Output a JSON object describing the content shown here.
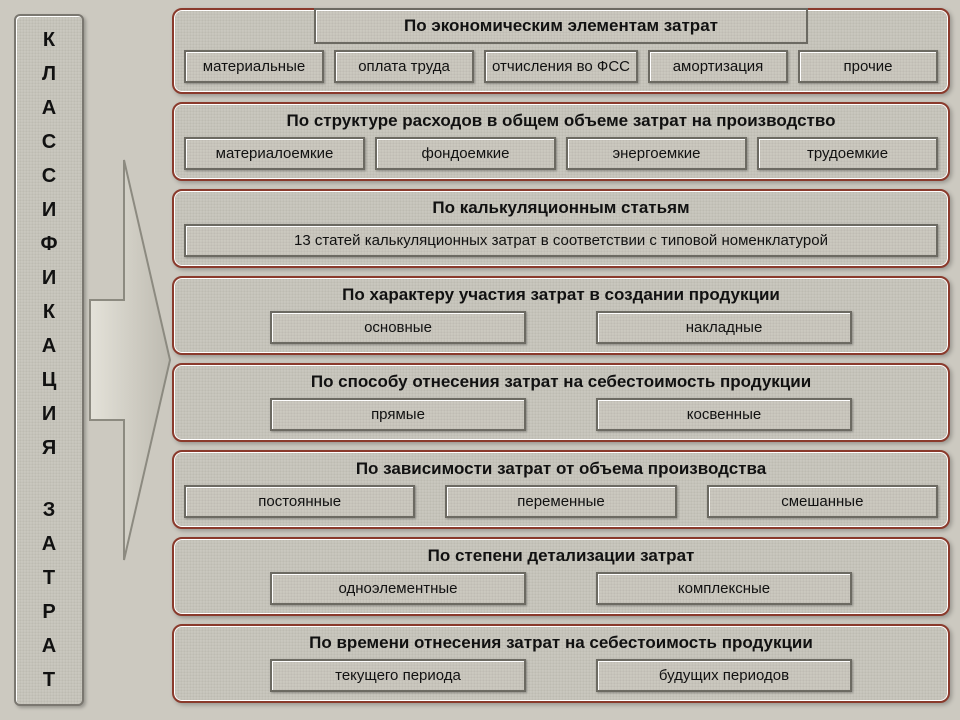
{
  "colors": {
    "panel_border": "#8a3a2c",
    "chip_border": "#6c6a62",
    "chip_bg": "#c9c6bd",
    "page_bg": "#ccc9c0",
    "arrow_fill": "#d5d3ca",
    "arrow_stroke": "#8c8a80"
  },
  "left_title": "КЛАССИФИКАЦИЯ ЗАТРАТ",
  "panels": [
    {
      "title": "По экономическим элементам затрат",
      "layout": "banner5",
      "items": [
        "материальные",
        "оплата труда",
        "отчисления во ФСС",
        "амортизация",
        "прочие"
      ]
    },
    {
      "title": "По структуре расходов в общем объеме затрат на производство",
      "layout": "row4",
      "items": [
        "материалоемкие",
        "фондоемкие",
        "энергоемкие",
        "трудоемкие"
      ]
    },
    {
      "title": "По калькуляционным статьям",
      "layout": "row1",
      "items": [
        "13 статей калькуляционных затрат в соответствии с типовой номенклатурой"
      ]
    },
    {
      "title": "По характеру участия затрат в создании продукции",
      "layout": "row2",
      "items": [
        "основные",
        "накладные"
      ]
    },
    {
      "title": "По способу отнесения затрат на себестоимость продукции",
      "layout": "row2",
      "items": [
        "прямые",
        "косвенные"
      ]
    },
    {
      "title": "По зависимости затрат от объема производства",
      "layout": "row3",
      "items": [
        "постоянные",
        "переменные",
        "смешанные"
      ]
    },
    {
      "title": "По степени детализации затрат",
      "layout": "row2",
      "items": [
        "одноэлементные",
        "комплексные"
      ]
    },
    {
      "title": "По времени отнесения затрат на себестоимость продукции",
      "layout": "row2",
      "items": [
        "текущего периода",
        "будущих периодов"
      ]
    }
  ]
}
